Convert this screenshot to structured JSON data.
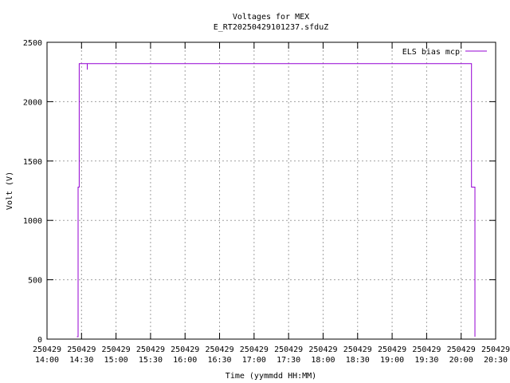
{
  "chart_data": {
    "type": "line",
    "title": "Voltages for MEX",
    "subtitle": "E_RT20250429101237.sfduZ",
    "xlabel": "Time (yymmdd HH:MM)",
    "ylabel": "Volt (V)",
    "xlim": [
      "14:00",
      "20:30"
    ],
    "ylim": [
      0,
      2500
    ],
    "grid": true,
    "legend_position": "top-right",
    "x_ticks": [
      {
        "date": "250429",
        "time": "14:00"
      },
      {
        "date": "250429",
        "time": "14:30"
      },
      {
        "date": "250429",
        "time": "15:00"
      },
      {
        "date": "250429",
        "time": "15:30"
      },
      {
        "date": "250429",
        "time": "16:00"
      },
      {
        "date": "250429",
        "time": "16:30"
      },
      {
        "date": "250429",
        "time": "17:00"
      },
      {
        "date": "250429",
        "time": "17:30"
      },
      {
        "date": "250429",
        "time": "18:00"
      },
      {
        "date": "250429",
        "time": "18:30"
      },
      {
        "date": "250429",
        "time": "19:00"
      },
      {
        "date": "250429",
        "time": "19:30"
      },
      {
        "date": "250429",
        "time": "20:00"
      },
      {
        "date": "250429",
        "time": "20:30"
      }
    ],
    "y_ticks": [
      "0",
      "500",
      "1000",
      "1500",
      "2000",
      "2500"
    ],
    "series": [
      {
        "name": "ELS bias mcp",
        "color": "#9400d3",
        "points": [
          [
            "14:26",
            20
          ],
          [
            "14:27",
            20
          ],
          [
            "14:27",
            1280
          ],
          [
            "14:28",
            1280
          ],
          [
            "14:28",
            2320
          ],
          [
            "14:35",
            2320
          ],
          [
            "14:35",
            2270
          ],
          [
            "14:35",
            2320
          ],
          [
            "20:09",
            2320
          ],
          [
            "20:09",
            1280
          ],
          [
            "20:12",
            1280
          ],
          [
            "20:12",
            20
          ]
        ]
      }
    ]
  }
}
